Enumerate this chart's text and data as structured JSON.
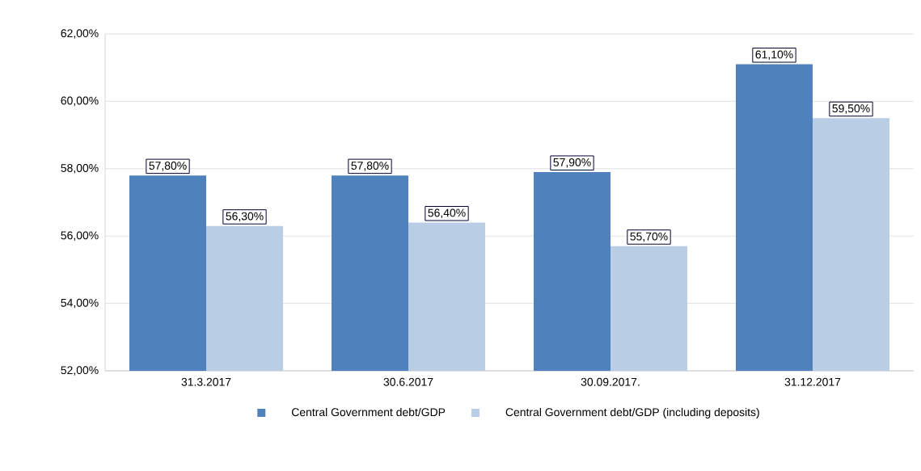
{
  "chart_data": {
    "type": "bar",
    "categories": [
      "31.3.2017",
      "30.6.2017",
      "30.09.2017.",
      "31.12.2017"
    ],
    "series": [
      {
        "name": "Central Government debt/GDP",
        "color": "#4f81bd",
        "values": [
          57.8,
          57.8,
          57.9,
          61.1
        ],
        "value_labels": [
          "57,80%",
          "57,80%",
          "57,90%",
          "61,10%"
        ]
      },
      {
        "name": "Central Government debt/GDP (including deposits)",
        "color": "#b9cde5",
        "values": [
          56.3,
          56.4,
          55.7,
          59.5
        ],
        "value_labels": [
          "56,30%",
          "56,40%",
          "55,70%",
          "59,50%"
        ]
      }
    ],
    "ylim": [
      52,
      62
    ],
    "yticks": [
      {
        "value": 52,
        "label": "52,00%"
      },
      {
        "value": 54,
        "label": "54,00%"
      },
      {
        "value": 56,
        "label": "56,00%"
      },
      {
        "value": 58,
        "label": "58,00%"
      },
      {
        "value": 60,
        "label": "60,00%"
      },
      {
        "value": 62,
        "label": "62,00%"
      }
    ],
    "grid": "y",
    "legend": "bottom"
  }
}
